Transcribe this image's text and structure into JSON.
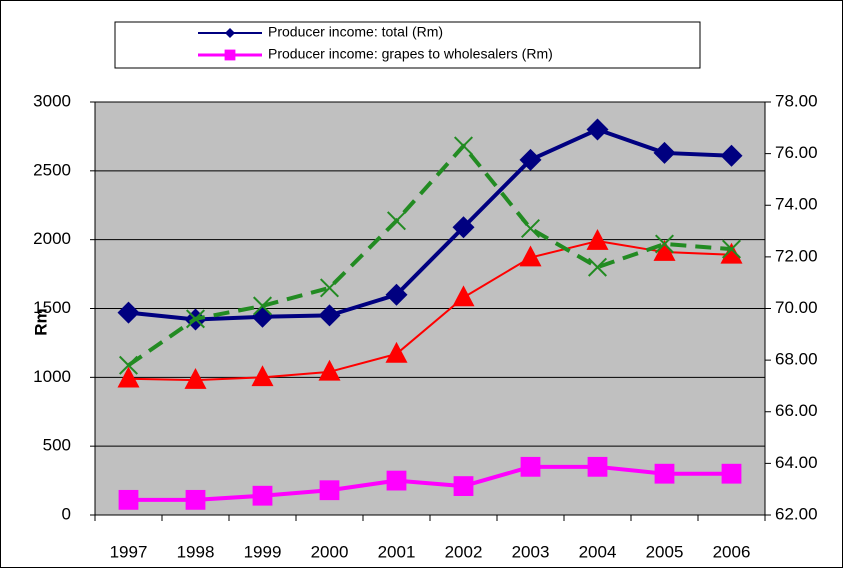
{
  "chart_data": {
    "type": "line",
    "categories": [
      "1997",
      "1998",
      "1999",
      "2000",
      "2001",
      "2002",
      "2003",
      "2004",
      "2005",
      "2006"
    ],
    "y_label": "Rm",
    "ylim": [
      0,
      3000
    ],
    "yticks": [
      0,
      500,
      1000,
      1500,
      2000,
      2500,
      3000
    ],
    "y2lim": [
      62,
      78
    ],
    "y2ticks": [
      {
        "value": 62,
        "label": "62.00"
      },
      {
        "value": 64,
        "label": "64.00"
      },
      {
        "value": 66,
        "label": "66.00"
      },
      {
        "value": 68,
        "label": "68.00"
      },
      {
        "value": 70,
        "label": "70.00"
      },
      {
        "value": 72,
        "label": "72.00"
      },
      {
        "value": 74,
        "label": "74.00"
      },
      {
        "value": 76,
        "label": "76.00"
      },
      {
        "value": 78,
        "label": "78.00"
      }
    ],
    "grid": true,
    "legend": "top",
    "background": "#c0c0c0",
    "series": [
      {
        "name": "Producer income: total (Rm)",
        "color": "#000080",
        "marker": "diamond",
        "width": 4,
        "values": [
          1470,
          1420,
          1440,
          1450,
          1600,
          2090,
          2580,
          2800,
          2630,
          2610
        ]
      },
      {
        "name": "Producer income: grapes to wholesalers (Rm)",
        "color": "#ff00ff",
        "marker": "square",
        "width": 4,
        "values": [
          110,
          110,
          140,
          180,
          250,
          210,
          350,
          350,
          300,
          300
        ]
      },
      {
        "color": "#ff0000",
        "marker": "triangle",
        "width": 2,
        "values": [
          990,
          980,
          1000,
          1040,
          1170,
          1580,
          1870,
          1990,
          1910,
          1890
        ]
      },
      {
        "color": "#228b22",
        "marker": "x",
        "width": 4,
        "dash": true,
        "axis": "y2",
        "values": [
          67.8,
          69.6,
          70.1,
          70.8,
          73.4,
          76.3,
          73.1,
          71.6,
          72.5,
          72.3
        ]
      }
    ]
  }
}
